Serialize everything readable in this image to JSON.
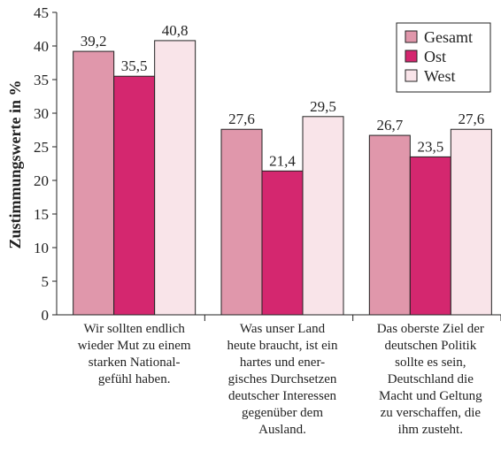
{
  "chart_data": {
    "type": "bar",
    "categories": [
      "Wir sollten endlich\nwieder Mut zu einem\nstarken National-\ngefühl haben.",
      "Was unser Land\nheute braucht, ist ein\nhartes und ener-\ngisches Durchsetzen\ndeutscher Interessen\ngegenüber dem\nAusland.",
      "Das oberste Ziel der\ndeutschen Politik\nsollte es sein,\nDeutschland die\nMacht und Geltung\nzu verschaffen, die\nihm zusteht."
    ],
    "series": [
      {
        "name": "Gesamt",
        "values": [
          39.2,
          27.6,
          26.7
        ],
        "labels": [
          "39,2",
          "27,6",
          "26,7"
        ],
        "color": "#e097ab"
      },
      {
        "name": "Ost",
        "values": [
          35.5,
          21.4,
          23.5
        ],
        "labels": [
          "35,5",
          "21,4",
          "23,5"
        ],
        "color": "#d4276f"
      },
      {
        "name": "West",
        "values": [
          40.8,
          29.5,
          27.6
        ],
        "labels": [
          "40,8",
          "29,5",
          "27,6"
        ],
        "color": "#f9e4e9"
      }
    ],
    "ylabel": "Zustimmungswerte in %",
    "ylim": [
      0,
      45
    ],
    "yticks": [
      0,
      5,
      10,
      15,
      20,
      25,
      30,
      35,
      40,
      45
    ],
    "legend": "top-right",
    "grid": false
  }
}
